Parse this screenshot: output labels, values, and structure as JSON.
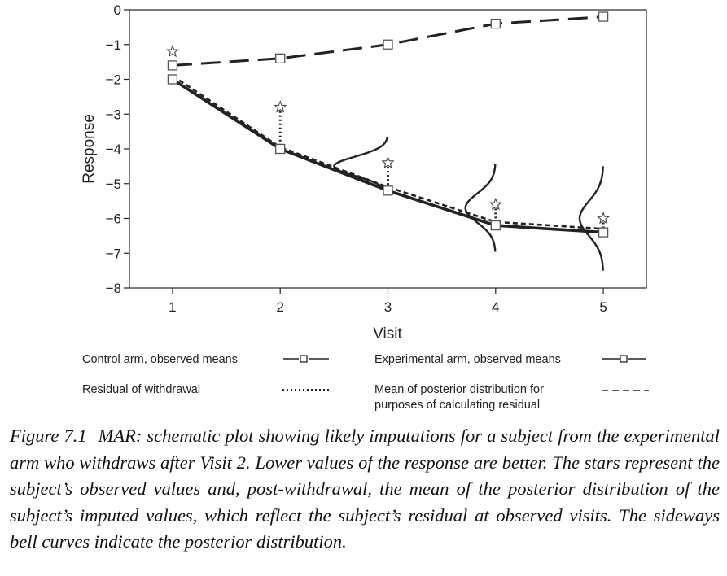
{
  "chart_data": {
    "type": "line",
    "xlabel": "Visit",
    "ylabel": "Response",
    "xlim": [
      0.6,
      5.4
    ],
    "ylim": [
      -8,
      0
    ],
    "xticks": [
      1,
      2,
      3,
      4,
      5
    ],
    "yticks": [
      0,
      -1,
      -2,
      -3,
      -4,
      -5,
      -6,
      -7,
      -8
    ],
    "xtick_labels": [
      "1",
      "2",
      "3",
      "4",
      "5"
    ],
    "ytick_labels": [
      "0",
      "−1",
      "−2",
      "−3",
      "−4",
      "−5",
      "−6",
      "−7",
      "−8"
    ],
    "grid": false,
    "series": [
      {
        "name": "Control arm, observed means",
        "style": "long-dash with square markers",
        "x": [
          1,
          2,
          3,
          4,
          5
        ],
        "y": [
          -1.6,
          -1.4,
          -1.0,
          -0.4,
          -0.2
        ]
      },
      {
        "name": "Experimental arm, observed means",
        "style": "thick solid with square markers",
        "x": [
          1,
          2,
          3,
          4,
          5
        ],
        "y": [
          -2.0,
          -4.0,
          -5.2,
          -6.2,
          -6.4
        ]
      },
      {
        "name": "Mean of posterior distribution for purposes of calculating residual",
        "style": "short dash",
        "x": [
          1,
          2,
          3,
          4,
          5
        ],
        "y": [
          -1.9,
          -3.95,
          -5.1,
          -6.1,
          -6.3
        ]
      }
    ],
    "stars": {
      "x": [
        1,
        2,
        3,
        4,
        5
      ],
      "y": [
        -1.2,
        -2.8,
        -4.4,
        -5.6,
        -6.0
      ]
    },
    "residual_segments": [
      {
        "x": 2,
        "y_from": -2.8,
        "y_to": -4.0
      },
      {
        "x": 3,
        "y_from": -4.4,
        "y_to": -5.15
      },
      {
        "x": 4,
        "y_from": -5.6,
        "y_to": -6.15
      },
      {
        "x": 5,
        "y_from": -6.0,
        "y_to": -6.3
      }
    ],
    "posterior_curves": [
      {
        "x": 3,
        "center": -4.5,
        "spread": 0.28,
        "height": 0.5
      },
      {
        "x": 4,
        "center": -5.7,
        "spread": 0.42,
        "height": 0.28
      },
      {
        "x": 5,
        "center": -6.0,
        "spread": 0.5,
        "height": 0.22
      }
    ],
    "legend": [
      {
        "label": "Control arm, observed means",
        "key": "control"
      },
      {
        "label": "Experimental arm, observed means",
        "key": "experimental"
      },
      {
        "label": "Residual of withdrawal",
        "key": "residual"
      },
      {
        "label": "Mean of posterior distribution for",
        "label2": "purposes of calculating residual",
        "key": "posterior_mean"
      }
    ]
  },
  "caption": {
    "label": "Figure 7.1",
    "text": "MAR: schematic plot showing likely imputations for a subject from the experimental arm who withdraws after Visit 2. Lower values of the response are better. The stars represent the subject’s observed values and, post-withdrawal, the mean of the posterior distribution of the subject’s imputed values, which reflect the subject’s residual at observed visits. The sideways bell curves indicate the posterior distribution."
  }
}
